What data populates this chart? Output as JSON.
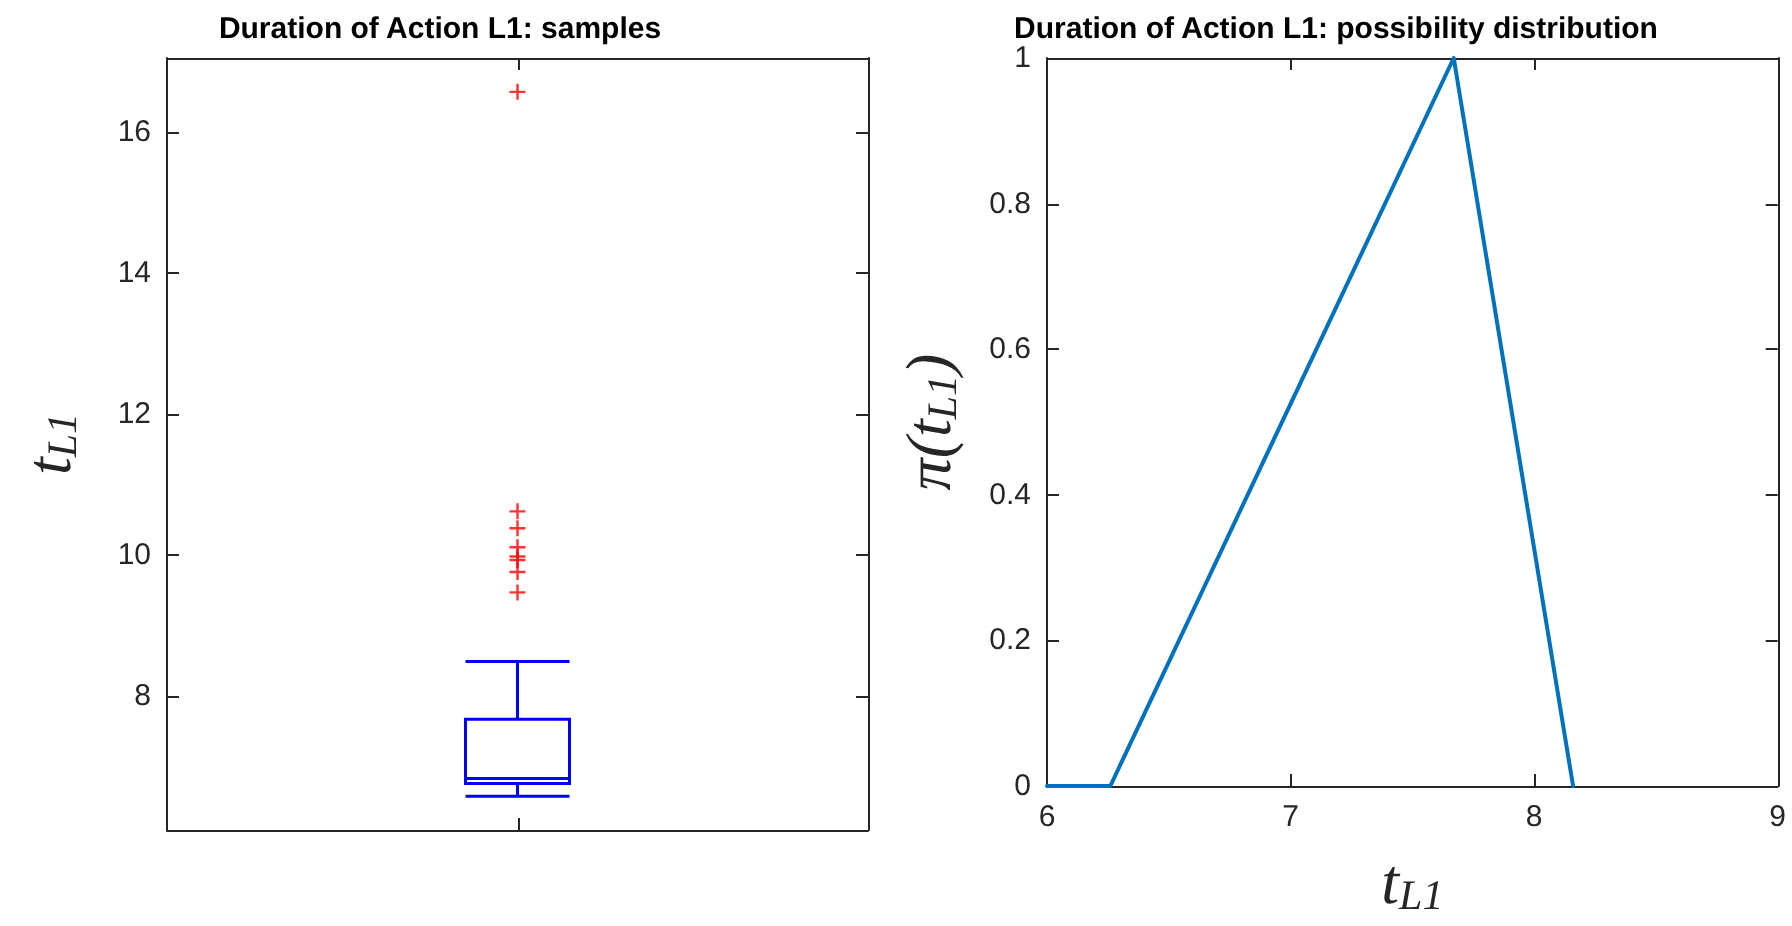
{
  "chart_data": [
    {
      "type": "box",
      "title": "Duration of Action L1: samples",
      "ylabel": "t$_{L1}$",
      "categories": [
        null
      ],
      "ylim": [
        6.1,
        17.05
      ],
      "yticks": [
        8,
        10,
        12,
        14,
        16
      ],
      "tick_labels": "y",
      "grid": false,
      "series": [
        {
          "color": "#0000ff",
          "boxes": [
            {
              "low": 6.58,
              "q1": 6.76,
              "median": 6.83,
              "q3": 7.67,
              "high": 8.49,
              "outliers": [
                9.47,
                9.76,
                9.93,
                9.98,
                10.11,
                10.38,
                10.62,
                16.57
              ]
            }
          ]
        }
      ]
    },
    {
      "type": "line",
      "title": "Duration of Action L1: possibility distribution",
      "xlabel": "t$_{L1}$",
      "ylabel": "π(t$_{L1}$)",
      "xlim": [
        6,
        9
      ],
      "xticks": [
        6,
        7,
        8,
        9
      ],
      "ylim": [
        0,
        1
      ],
      "yticks": [
        0,
        0.2,
        0.4,
        0.6,
        0.8,
        1
      ],
      "grid": false,
      "marker": "none",
      "line_style": "solid",
      "series": [
        {
          "color": "#0072bd",
          "x": [
            6,
            6.26,
            7.67,
            8.16
          ],
          "values": [
            0,
            0,
            1,
            0
          ]
        }
      ]
    }
  ]
}
